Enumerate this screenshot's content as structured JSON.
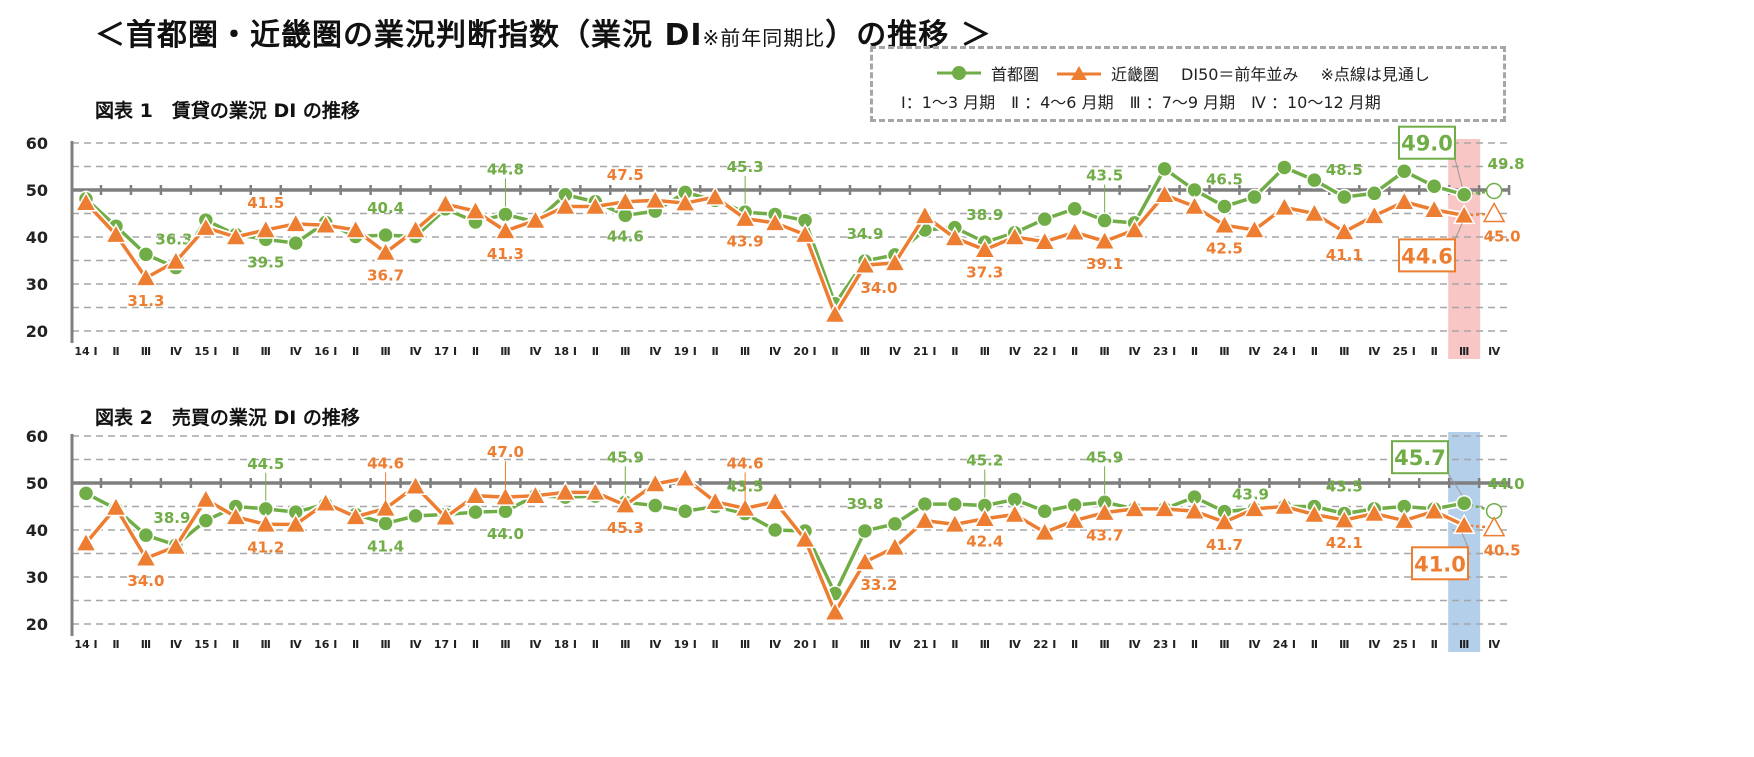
{
  "title": {
    "main_prefix": "＜首都圏・近畿圏の業況判断指数（業況 DI",
    "main_small": "※前年同期比",
    "main_suffix": "）の推移 ＞"
  },
  "legend": {
    "series1": "首都圏",
    "series2": "近畿圏",
    "note_di50": "DI50＝前年並み",
    "note_dotted": "※点線は見通し",
    "quarters": "Ⅰ：1～3 月期　Ⅱ ：4～6 月期　Ⅲ ：7～9 月期　Ⅳ ：10～12 月期"
  },
  "colors": {
    "shutoken": "#70AD47",
    "kinki": "#ED7D31",
    "highlight1": "#F9C6C6",
    "highlight2": "#B4CFEA",
    "grid": "#A6A6A6",
    "axis": "#7F7F7F"
  },
  "chart_data": [
    {
      "type": "line",
      "title": "図表 1　賃貸の業況 DI の推移",
      "ylim": [
        20,
        60
      ],
      "yticks": [
        20,
        30,
        40,
        50,
        60
      ],
      "grid": true,
      "reference_line": 50,
      "highlight_index": 46,
      "forecast_index": 47,
      "categories": [
        "14 Ⅰ",
        "Ⅱ",
        "Ⅲ",
        "Ⅳ",
        "15 Ⅰ",
        "Ⅱ",
        "Ⅲ",
        "Ⅳ",
        "16 Ⅰ",
        "Ⅱ",
        "Ⅲ",
        "Ⅳ",
        "17 Ⅰ",
        "Ⅱ",
        "Ⅲ",
        "Ⅳ",
        "18 Ⅰ",
        "Ⅱ",
        "Ⅲ",
        "Ⅳ",
        "19 Ⅰ",
        "Ⅱ",
        "Ⅲ",
        "Ⅳ",
        "20 Ⅰ",
        "Ⅱ",
        "Ⅲ",
        "Ⅳ",
        "21 Ⅰ",
        "Ⅱ",
        "Ⅲ",
        "Ⅳ",
        "22 Ⅰ",
        "Ⅱ",
        "Ⅲ",
        "Ⅳ",
        "23 Ⅰ",
        "Ⅱ",
        "Ⅲ",
        "Ⅳ",
        "24 Ⅰ",
        "Ⅱ",
        "Ⅲ",
        "Ⅳ",
        "25 Ⅰ",
        "Ⅱ",
        "Ⅲ",
        "Ⅳ"
      ],
      "series": [
        {
          "name": "首都圏",
          "marker": "circle",
          "values": [
            48.1,
            42.3,
            36.3,
            33.5,
            43.6,
            40.5,
            39.5,
            38.7,
            43.1,
            40.1,
            40.4,
            40.1,
            46.0,
            43.2,
            44.8,
            43.2,
            49.0,
            47.5,
            44.6,
            45.5,
            49.5,
            47.8,
            45.3,
            44.8,
            43.5,
            25.8,
            34.9,
            36.2,
            41.5,
            42.0,
            38.9,
            40.9,
            43.8,
            46.0,
            43.5,
            43.0,
            54.5,
            50.0,
            46.5,
            48.5,
            54.8,
            52.1,
            48.5,
            49.3,
            54.0,
            50.8,
            49.0,
            49.8
          ],
          "labels": [
            {
              "i": 2,
              "text": "36.3"
            },
            {
              "i": 6,
              "text": "39.5"
            },
            {
              "i": 10,
              "text": "40.4"
            },
            {
              "i": 14,
              "text": "44.8"
            },
            {
              "i": 18,
              "text": "44.6"
            },
            {
              "i": 22,
              "text": "45.3"
            },
            {
              "i": 26,
              "text": "34.9"
            },
            {
              "i": 30,
              "text": "38.9"
            },
            {
              "i": 34,
              "text": "43.5"
            },
            {
              "i": 38,
              "text": "46.5"
            },
            {
              "i": 42,
              "text": "48.5"
            },
            {
              "i": 46,
              "text": "49.0",
              "boxed": true
            },
            {
              "i": 47,
              "text": "49.8"
            }
          ]
        },
        {
          "name": "近畿圏",
          "marker": "triangle",
          "values": [
            47.3,
            40.5,
            31.3,
            34.8,
            42.0,
            40.0,
            41.5,
            42.8,
            42.5,
            41.5,
            36.7,
            41.5,
            47.0,
            45.5,
            41.3,
            43.5,
            46.5,
            46.5,
            47.5,
            47.8,
            47.2,
            48.5,
            43.9,
            43.0,
            40.5,
            23.5,
            34.0,
            34.5,
            44.5,
            39.8,
            37.3,
            40.0,
            39.0,
            41.0,
            39.1,
            41.5,
            49.0,
            46.5,
            42.5,
            41.5,
            46.3,
            45.0,
            41.1,
            44.5,
            47.5,
            45.8,
            44.6,
            45.0
          ],
          "labels": [
            {
              "i": 2,
              "text": "31.3"
            },
            {
              "i": 6,
              "text": "41.5"
            },
            {
              "i": 10,
              "text": "36.7"
            },
            {
              "i": 14,
              "text": "41.3"
            },
            {
              "i": 18,
              "text": "47.5"
            },
            {
              "i": 22,
              "text": "43.9"
            },
            {
              "i": 26,
              "text": "34.0"
            },
            {
              "i": 30,
              "text": "37.3"
            },
            {
              "i": 34,
              "text": "39.1"
            },
            {
              "i": 38,
              "text": "42.5"
            },
            {
              "i": 42,
              "text": "41.1"
            },
            {
              "i": 46,
              "text": "44.6",
              "boxed": true
            },
            {
              "i": 47,
              "text": "45.0"
            }
          ]
        }
      ]
    },
    {
      "type": "line",
      "title": "図表 2　売買の業況 DI の推移",
      "ylim": [
        20,
        60
      ],
      "yticks": [
        20,
        30,
        40,
        50,
        60
      ],
      "grid": true,
      "reference_line": 50,
      "highlight_index": 46,
      "forecast_index": 47,
      "categories": [
        "14 Ⅰ",
        "Ⅱ",
        "Ⅲ",
        "Ⅳ",
        "15 Ⅰ",
        "Ⅱ",
        "Ⅲ",
        "Ⅳ",
        "16 Ⅰ",
        "Ⅱ",
        "Ⅲ",
        "Ⅳ",
        "17 Ⅰ",
        "Ⅱ",
        "Ⅲ",
        "Ⅳ",
        "18 Ⅰ",
        "Ⅱ",
        "Ⅲ",
        "Ⅳ",
        "19 Ⅰ",
        "Ⅱ",
        "Ⅲ",
        "Ⅳ",
        "20 Ⅰ",
        "Ⅱ",
        "Ⅲ",
        "Ⅳ",
        "21 Ⅰ",
        "Ⅱ",
        "Ⅲ",
        "Ⅳ",
        "22 Ⅰ",
        "Ⅱ",
        "Ⅲ",
        "Ⅳ",
        "23 Ⅰ",
        "Ⅱ",
        "Ⅲ",
        "Ⅳ",
        "24 Ⅰ",
        "Ⅱ",
        "Ⅲ",
        "Ⅳ",
        "25 Ⅰ",
        "Ⅱ",
        "Ⅲ",
        "Ⅳ"
      ],
      "series": [
        {
          "name": "首都圏",
          "marker": "circle",
          "values": [
            47.8,
            44.5,
            38.9,
            36.8,
            42.0,
            45.0,
            44.5,
            43.8,
            45.5,
            43.3,
            41.4,
            43.0,
            43.3,
            43.8,
            44.0,
            47.3,
            47.0,
            47.2,
            45.9,
            45.2,
            44.0,
            45.0,
            43.5,
            40.0,
            39.8,
            26.5,
            39.8,
            41.3,
            45.5,
            45.5,
            45.2,
            46.5,
            44.0,
            45.3,
            45.9,
            44.5,
            44.5,
            47.0,
            43.9,
            44.5,
            45.0,
            45.0,
            43.5,
            44.5,
            45.0,
            44.5,
            45.7,
            44.0
          ],
          "labels": [
            {
              "i": 2,
              "text": "38.9"
            },
            {
              "i": 6,
              "text": "44.5"
            },
            {
              "i": 10,
              "text": "41.4"
            },
            {
              "i": 14,
              "text": "44.0"
            },
            {
              "i": 18,
              "text": "45.9"
            },
            {
              "i": 22,
              "text": "43.5"
            },
            {
              "i": 26,
              "text": "39.8"
            },
            {
              "i": 30,
              "text": "45.2"
            },
            {
              "i": 34,
              "text": "45.9"
            },
            {
              "i": 38,
              "text": "43.9"
            },
            {
              "i": 42,
              "text": "43.5"
            },
            {
              "i": 46,
              "text": "45.7",
              "boxed": true
            },
            {
              "i": 47,
              "text": "44.0"
            }
          ]
        },
        {
          "name": "近畿圏",
          "marker": "triangle",
          "values": [
            37.2,
            44.8,
            34.0,
            36.5,
            46.5,
            42.8,
            41.2,
            41.2,
            45.7,
            42.8,
            44.6,
            49.3,
            42.7,
            47.3,
            47.0,
            47.3,
            48.0,
            48.0,
            45.3,
            49.8,
            51.0,
            46.0,
            44.6,
            46.0,
            38.0,
            22.5,
            33.2,
            36.3,
            42.0,
            41.2,
            42.4,
            43.3,
            39.5,
            42.0,
            43.7,
            44.5,
            44.5,
            44.0,
            41.7,
            44.5,
            45.0,
            43.3,
            42.1,
            43.5,
            42.0,
            44.0,
            41.0,
            40.5
          ],
          "labels": [
            {
              "i": 2,
              "text": "34.0"
            },
            {
              "i": 6,
              "text": "41.2"
            },
            {
              "i": 10,
              "text": "44.6"
            },
            {
              "i": 14,
              "text": "47.0"
            },
            {
              "i": 18,
              "text": "45.3"
            },
            {
              "i": 22,
              "text": "44.6"
            },
            {
              "i": 26,
              "text": "33.2"
            },
            {
              "i": 30,
              "text": "42.4"
            },
            {
              "i": 34,
              "text": "43.7"
            },
            {
              "i": 38,
              "text": "41.7"
            },
            {
              "i": 42,
              "text": "42.1"
            },
            {
              "i": 46,
              "text": "41.0",
              "boxed": true
            },
            {
              "i": 47,
              "text": "40.5"
            }
          ]
        }
      ]
    }
  ]
}
